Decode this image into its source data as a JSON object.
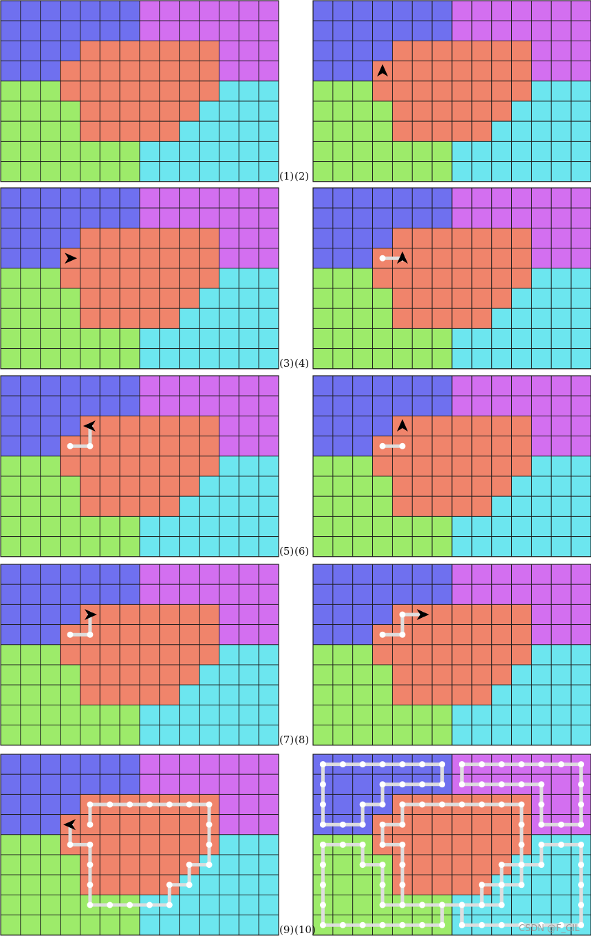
{
  "grid": {
    "columns": 14,
    "rows": 9,
    "region_map": [
      "BBBBBBBPPPPPPP",
      "BBBBBBBPPPPPPP",
      "BBBBOOOOOOOPPP",
      "BBBOOOOOOOOPPP",
      "GGGOOOOOOOOCCC",
      "GGGGOOOOOOCCCC",
      "GGGGOOOOOCCCCC",
      "GGGGGGGCCCCCCC",
      "GGGGGGGCCCCCCC"
    ],
    "region_colors": {
      "B": "#6f70ef",
      "P": "#d36ff0",
      "O": "#f0846b",
      "G": "#9deb6a",
      "C": "#6ce6ef"
    },
    "line_color": "#1e1e1e",
    "path_color": "#dedede",
    "node_color": "#ffffff",
    "arrow_color": "#000000"
  },
  "panels": [
    {
      "label": "(1)",
      "paths": [],
      "arrow": null
    },
    {
      "label": "(2)",
      "paths": [],
      "arrow": {
        "at": [
          3.5,
          3.5
        ],
        "dir": "up"
      }
    },
    {
      "label": "(3)",
      "paths": [],
      "arrow": {
        "at": [
          3.5,
          3.5
        ],
        "dir": "right"
      }
    },
    {
      "label": "(4)",
      "paths": [
        [
          [
            3.5,
            3.5
          ],
          [
            4.5,
            3.5
          ]
        ]
      ],
      "arrow": {
        "at": [
          4.5,
          3.5
        ],
        "dir": "up"
      }
    },
    {
      "label": "(5)",
      "paths": [
        [
          [
            3.5,
            3.5
          ],
          [
            4.5,
            3.5
          ],
          [
            4.5,
            2.5
          ]
        ]
      ],
      "arrow": {
        "at": [
          4.5,
          2.5
        ],
        "dir": "left"
      }
    },
    {
      "label": "(6)",
      "paths": [
        [
          [
            3.5,
            3.5
          ],
          [
            4.5,
            3.5
          ]
        ]
      ],
      "arrow": {
        "at": [
          4.5,
          2.5
        ],
        "dir": "up"
      }
    },
    {
      "label": "(7)",
      "paths": [
        [
          [
            3.5,
            3.5
          ],
          [
            4.5,
            3.5
          ],
          [
            4.5,
            2.5
          ]
        ]
      ],
      "arrow": {
        "at": [
          4.5,
          2.5
        ],
        "dir": "right"
      }
    },
    {
      "label": "(8)",
      "paths": [
        [
          [
            3.5,
            3.5
          ],
          [
            4.5,
            3.5
          ],
          [
            4.5,
            2.5
          ],
          [
            5.5,
            2.5
          ]
        ]
      ],
      "arrow": {
        "at": [
          5.5,
          2.5
        ],
        "dir": "right"
      }
    },
    {
      "label": "(9)",
      "paths": [
        [
          [
            4.5,
            3.5
          ],
          [
            4.5,
            2.5
          ],
          [
            5.5,
            2.5
          ],
          [
            6.5,
            2.5
          ],
          [
            7.5,
            2.5
          ],
          [
            8.5,
            2.5
          ],
          [
            9.5,
            2.5
          ],
          [
            10.5,
            2.5
          ],
          [
            10.5,
            3.5
          ],
          [
            10.5,
            4.5
          ],
          [
            10.5,
            5.5
          ],
          [
            9.5,
            5.5
          ],
          [
            9.5,
            6.5
          ],
          [
            8.5,
            6.5
          ],
          [
            8.5,
            7.5
          ],
          [
            7.5,
            7.5
          ],
          [
            6.5,
            7.5
          ],
          [
            5.5,
            7.5
          ],
          [
            4.5,
            7.5
          ],
          [
            4.5,
            6.5
          ],
          [
            4.5,
            5.5
          ],
          [
            4.5,
            4.5
          ],
          [
            3.5,
            4.5
          ],
          [
            3.5,
            3.5
          ]
        ]
      ],
      "arrow": {
        "at": [
          3.5,
          3.5
        ],
        "dir": "left"
      }
    },
    {
      "label": "(10)",
      "paths": [
        [
          [
            0.5,
            0.5
          ],
          [
            1.5,
            0.5
          ],
          [
            2.5,
            0.5
          ],
          [
            3.5,
            0.5
          ],
          [
            4.5,
            0.5
          ],
          [
            5.5,
            0.5
          ],
          [
            6.5,
            0.5
          ],
          [
            6.5,
            1.5
          ],
          [
            5.5,
            1.5
          ],
          [
            4.5,
            1.5
          ],
          [
            3.5,
            1.5
          ],
          [
            3.5,
            2.5
          ],
          [
            2.5,
            2.5
          ],
          [
            2.5,
            3.5
          ],
          [
            1.5,
            3.5
          ],
          [
            0.5,
            3.5
          ],
          [
            0.5,
            2.5
          ],
          [
            0.5,
            1.5
          ],
          [
            0.5,
            0.5
          ]
        ],
        [
          [
            7.5,
            0.5
          ],
          [
            8.5,
            0.5
          ],
          [
            9.5,
            0.5
          ],
          [
            10.5,
            0.5
          ],
          [
            11.5,
            0.5
          ],
          [
            12.5,
            0.5
          ],
          [
            13.5,
            0.5
          ],
          [
            13.5,
            1.5
          ],
          [
            13.5,
            2.5
          ],
          [
            13.5,
            3.5
          ],
          [
            12.5,
            3.5
          ],
          [
            11.5,
            3.5
          ],
          [
            11.5,
            2.5
          ],
          [
            11.5,
            1.5
          ],
          [
            10.5,
            1.5
          ],
          [
            9.5,
            1.5
          ],
          [
            8.5,
            1.5
          ],
          [
            7.5,
            1.5
          ],
          [
            7.5,
            0.5
          ]
        ],
        [
          [
            4.5,
            2.5
          ],
          [
            5.5,
            2.5
          ],
          [
            6.5,
            2.5
          ],
          [
            7.5,
            2.5
          ],
          [
            8.5,
            2.5
          ],
          [
            9.5,
            2.5
          ],
          [
            10.5,
            2.5
          ],
          [
            10.5,
            3.5
          ],
          [
            10.5,
            4.5
          ],
          [
            10.5,
            5.5
          ],
          [
            9.5,
            5.5
          ],
          [
            9.5,
            6.5
          ],
          [
            8.5,
            6.5
          ],
          [
            8.5,
            7.5
          ],
          [
            7.5,
            7.5
          ],
          [
            6.5,
            7.5
          ],
          [
            5.5,
            7.5
          ],
          [
            4.5,
            7.5
          ],
          [
            4.5,
            6.5
          ],
          [
            4.5,
            5.5
          ],
          [
            4.5,
            4.5
          ],
          [
            3.5,
            4.5
          ],
          [
            3.5,
            3.5
          ],
          [
            4.5,
            3.5
          ],
          [
            4.5,
            2.5
          ]
        ],
        [
          [
            0.5,
            4.5
          ],
          [
            1.5,
            4.5
          ],
          [
            2.5,
            4.5
          ],
          [
            2.5,
            5.5
          ],
          [
            3.5,
            5.5
          ],
          [
            3.5,
            6.5
          ],
          [
            3.5,
            7.5
          ],
          [
            4.5,
            7.5
          ],
          [
            5.5,
            7.5
          ],
          [
            6.5,
            7.5
          ],
          [
            6.5,
            8.5
          ],
          [
            5.5,
            8.5
          ],
          [
            4.5,
            8.5
          ],
          [
            3.5,
            8.5
          ],
          [
            2.5,
            8.5
          ],
          [
            1.5,
            8.5
          ],
          [
            0.5,
            8.5
          ],
          [
            0.5,
            7.5
          ],
          [
            0.5,
            6.5
          ],
          [
            0.5,
            5.5
          ],
          [
            0.5,
            4.5
          ]
        ],
        [
          [
            7.5,
            8.5
          ],
          [
            8.5,
            8.5
          ],
          [
            9.5,
            8.5
          ],
          [
            10.5,
            8.5
          ],
          [
            11.5,
            8.5
          ],
          [
            12.5,
            8.5
          ],
          [
            13.5,
            8.5
          ],
          [
            13.5,
            7.5
          ],
          [
            13.5,
            6.5
          ],
          [
            13.5,
            5.5
          ],
          [
            13.5,
            4.5
          ],
          [
            12.5,
            4.5
          ],
          [
            11.5,
            4.5
          ],
          [
            11.5,
            5.5
          ],
          [
            10.5,
            5.5
          ],
          [
            10.5,
            6.5
          ],
          [
            9.5,
            6.5
          ],
          [
            9.5,
            7.5
          ],
          [
            8.5,
            7.5
          ],
          [
            7.5,
            7.5
          ],
          [
            7.5,
            8.5
          ]
        ]
      ],
      "arrow": null
    }
  ],
  "watermark": "CSDN @F_CIL"
}
